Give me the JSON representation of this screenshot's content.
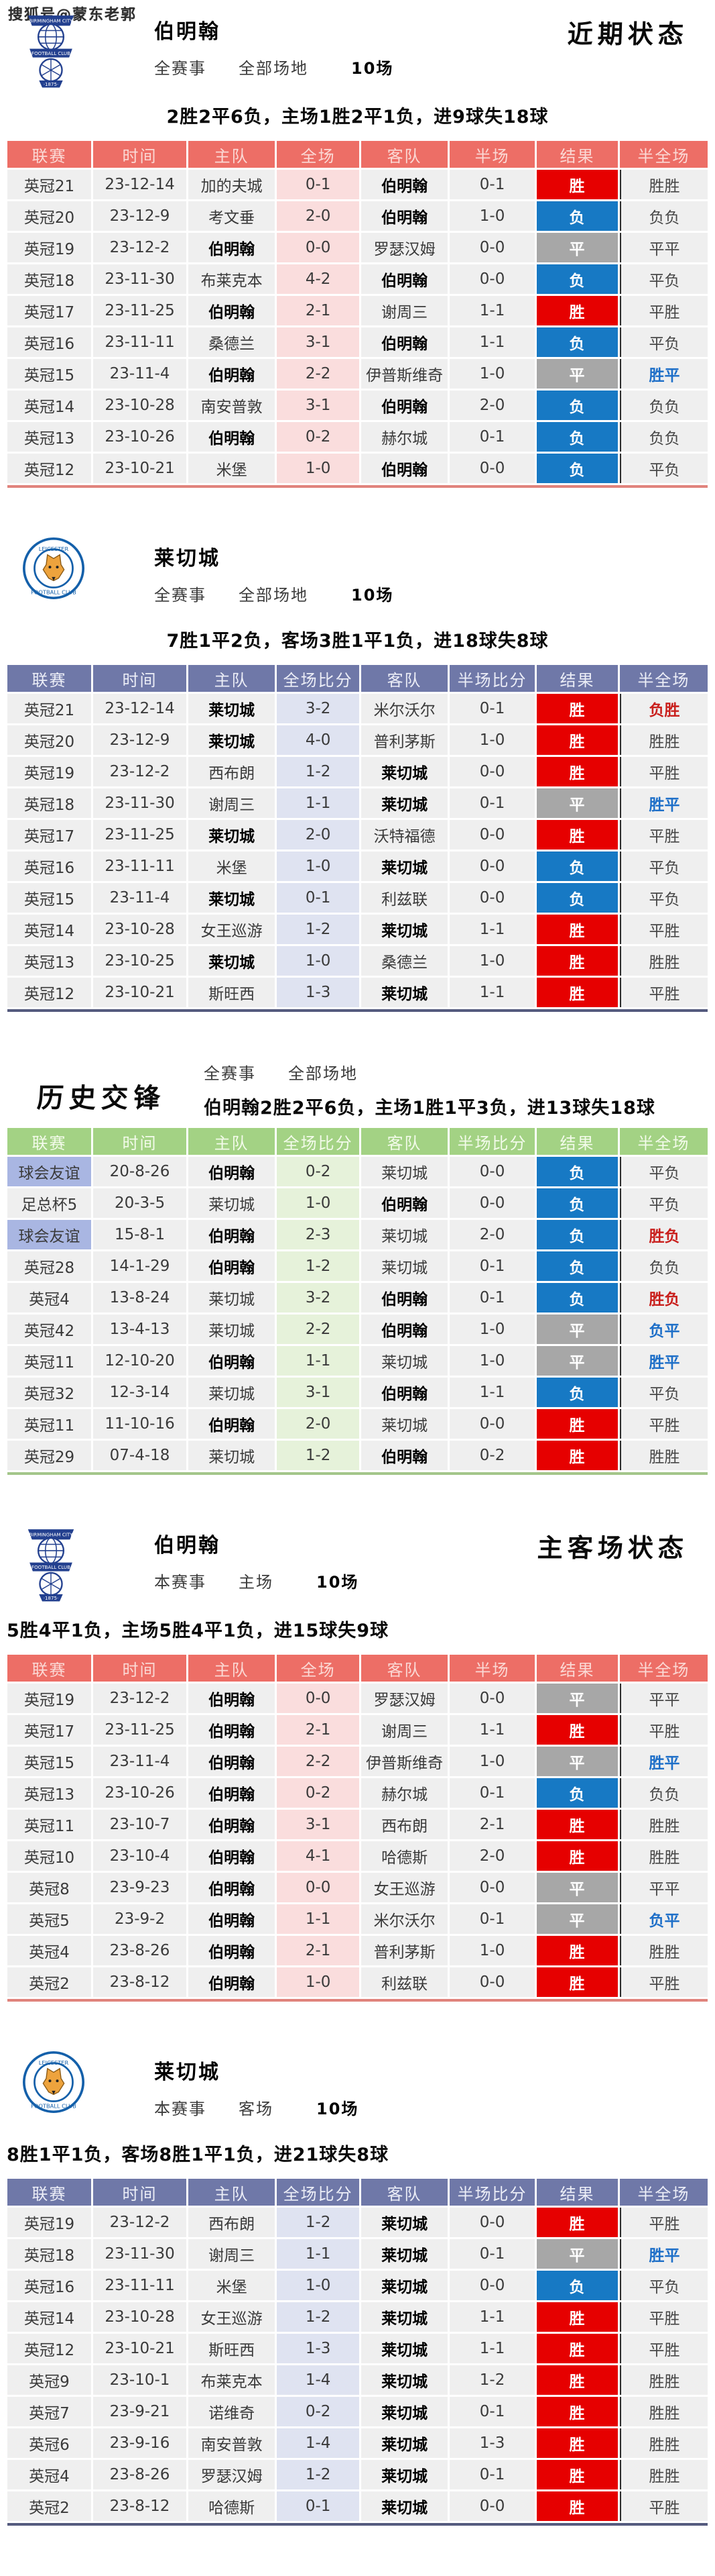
{
  "watermark": "搜狐号@蒙东老郭",
  "colors": {
    "win_bg": "#e60000",
    "lose_bg": "#1779c4",
    "draw_bg": "#a7a7a7",
    "red_header": "#ed6e66",
    "blue_header": "#6f78a8",
    "green_header": "#a3d284",
    "htft_blue": "#1e6fc8",
    "htft_red": "#c9201d",
    "friendly_league_bg": "#a9b6e2"
  },
  "sections": [
    {
      "title": "伯明翰",
      "logo": "birmingham-crest",
      "scope": "全赛事",
      "venue": "全部场地",
      "count": "10场",
      "corner_title": "近期状态",
      "summary": "2胜2平6负，主场1胜2平1负，进9球失18球",
      "theme": "theme-red",
      "bold_team": "伯明翰",
      "columns": [
        "联赛",
        "时间",
        "主队",
        "全场",
        "客队",
        "半场",
        "结果",
        "半全场"
      ],
      "rows": [
        [
          "英冠21",
          "23-12-14",
          "加的夫城",
          "0-1",
          "伯明翰",
          "0-1",
          "胜",
          "胜胜",
          "",
          false
        ],
        [
          "英冠20",
          "23-12-9",
          "考文垂",
          "2-0",
          "伯明翰",
          "1-0",
          "负",
          "负负",
          "",
          false
        ],
        [
          "英冠19",
          "23-12-2",
          "伯明翰",
          "0-0",
          "罗瑟汉姆",
          "0-0",
          "平",
          "平平",
          "",
          false
        ],
        [
          "英冠18",
          "23-11-30",
          "布莱克本",
          "4-2",
          "伯明翰",
          "0-0",
          "负",
          "平负",
          "",
          false
        ],
        [
          "英冠17",
          "23-11-25",
          "伯明翰",
          "2-1",
          "谢周三",
          "1-1",
          "胜",
          "平胜",
          "",
          false
        ],
        [
          "英冠16",
          "23-11-11",
          "桑德兰",
          "3-1",
          "伯明翰",
          "1-1",
          "负",
          "平负",
          "",
          false
        ],
        [
          "英冠15",
          "23-11-4",
          "伯明翰",
          "2-2",
          "伊普斯维奇",
          "1-0",
          "平",
          "胜平",
          "blue",
          false
        ],
        [
          "英冠14",
          "23-10-28",
          "南安普敦",
          "3-1",
          "伯明翰",
          "2-0",
          "负",
          "负负",
          "",
          false
        ],
        [
          "英冠13",
          "23-10-26",
          "伯明翰",
          "0-2",
          "赫尔城",
          "0-1",
          "负",
          "负负",
          "",
          false
        ],
        [
          "英冠12",
          "23-10-21",
          "米堡",
          "1-0",
          "伯明翰",
          "0-0",
          "负",
          "平负",
          "",
          false
        ]
      ]
    },
    {
      "title": "莱切城",
      "logo": "leicester-crest",
      "scope": "全赛事",
      "venue": "全部场地",
      "count": "10场",
      "corner_title": "",
      "summary": "7胜1平2负，客场3胜1平1负，进18球失8球",
      "theme": "theme-blue",
      "bold_team": "莱切城",
      "columns": [
        "联赛",
        "时间",
        "主队",
        "全场比分",
        "客队",
        "半场比分",
        "结果",
        "半全场"
      ],
      "rows": [
        [
          "英冠21",
          "23-12-14",
          "莱切城",
          "3-2",
          "米尔沃尔",
          "0-1",
          "胜",
          "负胜",
          "red",
          false
        ],
        [
          "英冠20",
          "23-12-9",
          "莱切城",
          "4-0",
          "普利茅斯",
          "1-0",
          "胜",
          "胜胜",
          "",
          false
        ],
        [
          "英冠19",
          "23-12-2",
          "西布朗",
          "1-2",
          "莱切城",
          "0-0",
          "胜",
          "平胜",
          "",
          false
        ],
        [
          "英冠18",
          "23-11-30",
          "谢周三",
          "1-1",
          "莱切城",
          "0-1",
          "平",
          "胜平",
          "blue",
          false
        ],
        [
          "英冠17",
          "23-11-25",
          "莱切城",
          "2-0",
          "沃特福德",
          "0-0",
          "胜",
          "平胜",
          "",
          false
        ],
        [
          "英冠16",
          "23-11-11",
          "米堡",
          "1-0",
          "莱切城",
          "0-0",
          "负",
          "平负",
          "",
          false
        ],
        [
          "英冠15",
          "23-11-4",
          "莱切城",
          "0-1",
          "利兹联",
          "0-0",
          "负",
          "平负",
          "",
          false
        ],
        [
          "英冠14",
          "23-10-28",
          "女王巡游",
          "1-2",
          "莱切城",
          "1-1",
          "胜",
          "平胜",
          "",
          false
        ],
        [
          "英冠13",
          "23-10-25",
          "莱切城",
          "1-0",
          "桑德兰",
          "1-0",
          "胜",
          "胜胜",
          "",
          false
        ],
        [
          "英冠12",
          "23-10-21",
          "斯旺西",
          "1-3",
          "莱切城",
          "1-1",
          "胜",
          "平胜",
          "",
          false
        ]
      ]
    },
    {
      "title": "历史交锋",
      "logo": "",
      "scope": "全赛事",
      "venue": "全部场地",
      "count": "",
      "corner_title": "",
      "summary": "伯明翰2胜2平6负，主场1胜1平3负，进13球失18球",
      "theme": "theme-green",
      "bold_team": "伯明翰",
      "columns": [
        "联赛",
        "时间",
        "主队",
        "全场比分",
        "客队",
        "半场比分",
        "结果",
        "半全场"
      ],
      "rows": [
        [
          "球会友谊",
          "20-8-26",
          "伯明翰",
          "0-2",
          "莱切城",
          "0-0",
          "负",
          "平负",
          "",
          true
        ],
        [
          "足总杯5",
          "20-3-5",
          "莱切城",
          "1-0",
          "伯明翰",
          "0-0",
          "负",
          "平负",
          "",
          false
        ],
        [
          "球会友谊",
          "15-8-1",
          "伯明翰",
          "2-3",
          "莱切城",
          "2-0",
          "负",
          "胜负",
          "red",
          true
        ],
        [
          "英冠28",
          "14-1-29",
          "伯明翰",
          "1-2",
          "莱切城",
          "0-1",
          "负",
          "负负",
          "",
          false
        ],
        [
          "英冠4",
          "13-8-24",
          "莱切城",
          "3-2",
          "伯明翰",
          "0-1",
          "负",
          "胜负",
          "red",
          false
        ],
        [
          "英冠42",
          "13-4-13",
          "莱切城",
          "2-2",
          "伯明翰",
          "1-0",
          "平",
          "负平",
          "blue",
          false
        ],
        [
          "英冠11",
          "12-10-20",
          "伯明翰",
          "1-1",
          "莱切城",
          "1-0",
          "平",
          "胜平",
          "blue",
          false
        ],
        [
          "英冠32",
          "12-3-14",
          "莱切城",
          "3-1",
          "伯明翰",
          "1-1",
          "负",
          "平负",
          "",
          false
        ],
        [
          "英冠11",
          "11-10-16",
          "伯明翰",
          "2-0",
          "莱切城",
          "0-0",
          "胜",
          "平胜",
          "",
          false
        ],
        [
          "英冠29",
          "07-4-18",
          "莱切城",
          "1-2",
          "伯明翰",
          "0-2",
          "胜",
          "胜胜",
          "",
          false
        ]
      ]
    },
    {
      "title": "伯明翰",
      "logo": "birmingham-crest",
      "scope": "本赛事",
      "venue": "主场",
      "count": "10场",
      "corner_title": "主客场状态",
      "summary": "5胜4平1负，主场5胜4平1负，进15球失9球",
      "theme": "theme-red",
      "bold_team": "伯明翰",
      "columns": [
        "联赛",
        "时间",
        "主队",
        "全场",
        "客队",
        "半场",
        "结果",
        "半全场"
      ],
      "rows": [
        [
          "英冠19",
          "23-12-2",
          "伯明翰",
          "0-0",
          "罗瑟汉姆",
          "0-0",
          "平",
          "平平",
          "",
          false
        ],
        [
          "英冠17",
          "23-11-25",
          "伯明翰",
          "2-1",
          "谢周三",
          "1-1",
          "胜",
          "平胜",
          "",
          false
        ],
        [
          "英冠15",
          "23-11-4",
          "伯明翰",
          "2-2",
          "伊普斯维奇",
          "1-0",
          "平",
          "胜平",
          "blue",
          false
        ],
        [
          "英冠13",
          "23-10-26",
          "伯明翰",
          "0-2",
          "赫尔城",
          "0-1",
          "负",
          "负负",
          "",
          false
        ],
        [
          "英冠11",
          "23-10-7",
          "伯明翰",
          "3-1",
          "西布朗",
          "2-1",
          "胜",
          "胜胜",
          "",
          false
        ],
        [
          "英冠10",
          "23-10-4",
          "伯明翰",
          "4-1",
          "哈德斯",
          "2-0",
          "胜",
          "胜胜",
          "",
          false
        ],
        [
          "英冠8",
          "23-9-23",
          "伯明翰",
          "0-0",
          "女王巡游",
          "0-0",
          "平",
          "平平",
          "",
          false
        ],
        [
          "英冠5",
          "23-9-2",
          "伯明翰",
          "1-1",
          "米尔沃尔",
          "0-1",
          "平",
          "负平",
          "blue",
          false
        ],
        [
          "英冠4",
          "23-8-26",
          "伯明翰",
          "2-1",
          "普利茅斯",
          "1-0",
          "胜",
          "胜胜",
          "",
          false
        ],
        [
          "英冠2",
          "23-8-12",
          "伯明翰",
          "1-0",
          "利兹联",
          "0-0",
          "胜",
          "平胜",
          "",
          false
        ]
      ]
    },
    {
      "title": "莱切城",
      "logo": "leicester-crest",
      "scope": "本赛事",
      "venue": "客场",
      "count": "10场",
      "corner_title": "",
      "summary": "8胜1平1负，客场8胜1平1负，进21球失8球",
      "theme": "theme-blue",
      "bold_team": "莱切城",
      "columns": [
        "联赛",
        "时间",
        "主队",
        "全场比分",
        "客队",
        "半场比分",
        "结果",
        "半全场"
      ],
      "rows": [
        [
          "英冠19",
          "23-12-2",
          "西布朗",
          "1-2",
          "莱切城",
          "0-0",
          "胜",
          "平胜",
          "",
          false
        ],
        [
          "英冠18",
          "23-11-30",
          "谢周三",
          "1-1",
          "莱切城",
          "0-1",
          "平",
          "胜平",
          "blue",
          false
        ],
        [
          "英冠16",
          "23-11-11",
          "米堡",
          "1-0",
          "莱切城",
          "0-0",
          "负",
          "平负",
          "",
          false
        ],
        [
          "英冠14",
          "23-10-28",
          "女王巡游",
          "1-2",
          "莱切城",
          "1-1",
          "胜",
          "平胜",
          "",
          false
        ],
        [
          "英冠12",
          "23-10-21",
          "斯旺西",
          "1-3",
          "莱切城",
          "1-1",
          "胜",
          "平胜",
          "",
          false
        ],
        [
          "英冠9",
          "23-10-1",
          "布莱克本",
          "1-4",
          "莱切城",
          "1-2",
          "胜",
          "胜胜",
          "",
          false
        ],
        [
          "英冠7",
          "23-9-21",
          "诺维奇",
          "0-2",
          "莱切城",
          "0-1",
          "胜",
          "胜胜",
          "",
          false
        ],
        [
          "英冠6",
          "23-9-16",
          "南安普敦",
          "1-4",
          "莱切城",
          "1-3",
          "胜",
          "胜胜",
          "",
          false
        ],
        [
          "英冠4",
          "23-8-26",
          "罗瑟汉姆",
          "1-2",
          "莱切城",
          "0-1",
          "胜",
          "胜胜",
          "",
          false
        ],
        [
          "英冠2",
          "23-8-12",
          "哈德斯",
          "0-1",
          "莱切城",
          "0-0",
          "胜",
          "平胜",
          "",
          false
        ]
      ]
    }
  ]
}
